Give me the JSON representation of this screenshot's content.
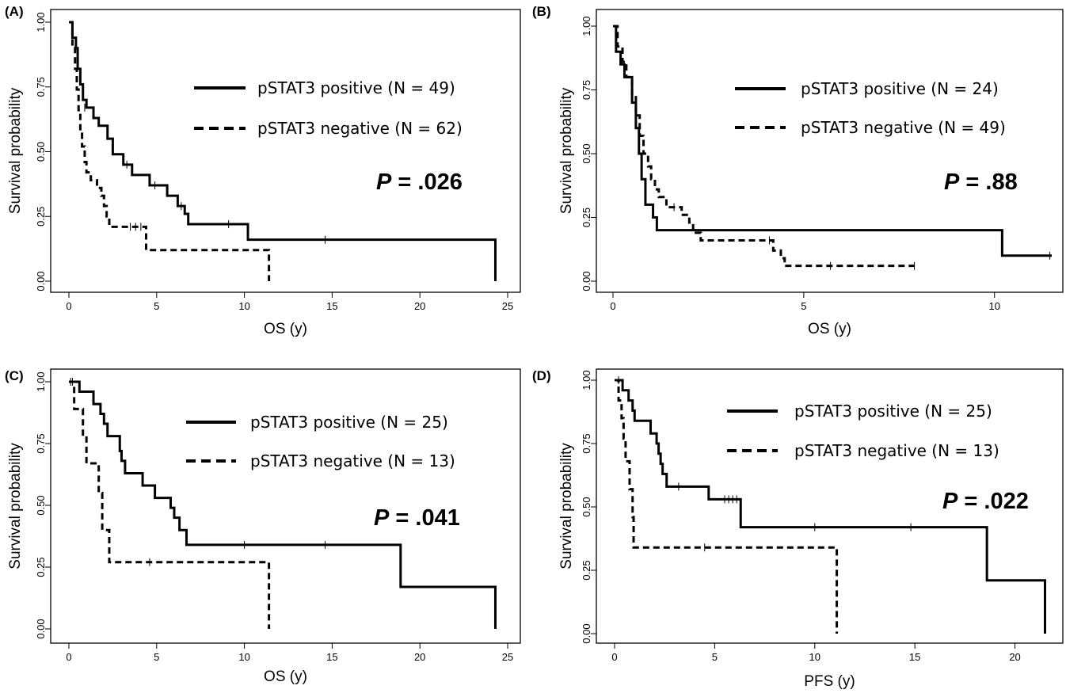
{
  "chart_data": [
    {
      "panel": "(A)",
      "type": "line",
      "xlabel": "OS (y)",
      "ylabel": "Survival probability",
      "xlim": [
        0,
        25
      ],
      "ylim": [
        0,
        1
      ],
      "x_ticks": [
        "0",
        "5",
        "10",
        "15",
        "20",
        "25"
      ],
      "y_ticks": [
        "0.00",
        "0.25",
        "0.50",
        "0.75",
        "1.00"
      ],
      "p_value": ".026",
      "series": [
        {
          "name": "pSTAT3 positive (N = 49)",
          "style": "solid",
          "steps": [
            [
              0,
              1.0
            ],
            [
              0.2,
              0.94
            ],
            [
              0.4,
              0.9
            ],
            [
              0.5,
              0.82
            ],
            [
              0.65,
              0.76
            ],
            [
              0.8,
              0.7
            ],
            [
              1.0,
              0.67
            ],
            [
              1.4,
              0.63
            ],
            [
              1.7,
              0.6
            ],
            [
              2.2,
              0.55
            ],
            [
              2.5,
              0.49
            ],
            [
              3.1,
              0.45
            ],
            [
              3.6,
              0.41
            ],
            [
              4.6,
              0.37
            ],
            [
              5.6,
              0.33
            ],
            [
              6.2,
              0.29
            ],
            [
              6.6,
              0.26
            ],
            [
              6.8,
              0.22
            ],
            [
              10.2,
              0.16
            ],
            [
              24.3,
              0.0
            ]
          ],
          "censor": [
            [
              0.9,
              0.67
            ],
            [
              3.3,
              0.45
            ],
            [
              4.9,
              0.37
            ],
            [
              6.4,
              0.29
            ],
            [
              9.1,
              0.22
            ],
            [
              14.6,
              0.16
            ]
          ]
        },
        {
          "name": "pSTAT3 negative (N = 62)",
          "style": "dashed",
          "steps": [
            [
              0,
              1.0
            ],
            [
              0.2,
              0.9
            ],
            [
              0.35,
              0.82
            ],
            [
              0.45,
              0.74
            ],
            [
              0.55,
              0.66
            ],
            [
              0.65,
              0.58
            ],
            [
              0.75,
              0.52
            ],
            [
              0.9,
              0.46
            ],
            [
              1.0,
              0.42
            ],
            [
              1.25,
              0.39
            ],
            [
              1.6,
              0.36
            ],
            [
              1.85,
              0.33
            ],
            [
              2.0,
              0.29
            ],
            [
              2.15,
              0.25
            ],
            [
              2.3,
              0.21
            ],
            [
              4.4,
              0.12
            ],
            [
              11.4,
              0.0
            ]
          ],
          "censor": [
            [
              3.5,
              0.21
            ],
            [
              3.8,
              0.21
            ],
            [
              4.1,
              0.21
            ]
          ]
        }
      ]
    },
    {
      "panel": "(B)",
      "type": "line",
      "xlabel": "OS (y)",
      "ylabel": "Survival probability",
      "xlim": [
        0,
        11.5
      ],
      "ylim": [
        0,
        1
      ],
      "x_ticks": [
        "0",
        "5",
        "10"
      ],
      "y_ticks": [
        "0.00",
        "0.25",
        "0.50",
        "0.75",
        "1.00"
      ],
      "p_value": ".88",
      "series": [
        {
          "name": "pSTAT3 positive (N = 24)",
          "style": "solid",
          "steps": [
            [
              0,
              1.0
            ],
            [
              0.08,
              0.9
            ],
            [
              0.2,
              0.85
            ],
            [
              0.3,
              0.8
            ],
            [
              0.5,
              0.7
            ],
            [
              0.6,
              0.6
            ],
            [
              0.68,
              0.5
            ],
            [
              0.75,
              0.4
            ],
            [
              0.85,
              0.3
            ],
            [
              1.05,
              0.25
            ],
            [
              1.15,
              0.2
            ],
            [
              10.2,
              0.1
            ],
            [
              11.5,
              0.1
            ]
          ],
          "censor": [
            [
              11.45,
              0.1
            ]
          ]
        },
        {
          "name": "pSTAT3 negative (N = 49)",
          "style": "dashed",
          "steps": [
            [
              0,
              1.0
            ],
            [
              0.12,
              0.92
            ],
            [
              0.25,
              0.86
            ],
            [
              0.35,
              0.8
            ],
            [
              0.5,
              0.73
            ],
            [
              0.6,
              0.65
            ],
            [
              0.7,
              0.57
            ],
            [
              0.8,
              0.5
            ],
            [
              0.92,
              0.45
            ],
            [
              1.0,
              0.4
            ],
            [
              1.1,
              0.36
            ],
            [
              1.2,
              0.33
            ],
            [
              1.4,
              0.29
            ],
            [
              1.8,
              0.26
            ],
            [
              2.0,
              0.23
            ],
            [
              2.1,
              0.19
            ],
            [
              2.3,
              0.16
            ],
            [
              4.2,
              0.12
            ],
            [
              4.4,
              0.09
            ],
            [
              4.5,
              0.06
            ],
            [
              7.9,
              0.06
            ]
          ],
          "censor": [
            [
              1.6,
              0.29
            ],
            [
              4.1,
              0.16
            ],
            [
              5.7,
              0.06
            ],
            [
              7.9,
              0.06
            ]
          ]
        }
      ]
    },
    {
      "panel": "(C)",
      "type": "line",
      "xlabel": "OS (y)",
      "ylabel": "Survival probability",
      "xlim": [
        0,
        25
      ],
      "ylim": [
        0,
        1
      ],
      "x_ticks": [
        "0",
        "5",
        "10",
        "15",
        "20",
        "25"
      ],
      "y_ticks": [
        "0.00",
        "0.25",
        "0.50",
        "0.75",
        "1.00"
      ],
      "p_value": ".041",
      "series": [
        {
          "name": "pSTAT3 positive (N = 25)",
          "style": "solid",
          "steps": [
            [
              0,
              1.0
            ],
            [
              0.6,
              0.96
            ],
            [
              1.4,
              0.91
            ],
            [
              1.8,
              0.87
            ],
            [
              2.0,
              0.83
            ],
            [
              2.2,
              0.78
            ],
            [
              2.9,
              0.72
            ],
            [
              3.0,
              0.68
            ],
            [
              3.2,
              0.63
            ],
            [
              4.2,
              0.58
            ],
            [
              4.9,
              0.53
            ],
            [
              5.8,
              0.49
            ],
            [
              6.0,
              0.45
            ],
            [
              6.3,
              0.4
            ],
            [
              6.7,
              0.34
            ],
            [
              18.9,
              0.17
            ],
            [
              24.3,
              0.0
            ]
          ],
          "censor": [
            [
              0.2,
              1.0
            ],
            [
              10.0,
              0.34
            ],
            [
              14.6,
              0.34
            ]
          ]
        },
        {
          "name": "pSTAT3 negative (N = 13)",
          "style": "dashed",
          "steps": [
            [
              0,
              1.0
            ],
            [
              0.3,
              0.89
            ],
            [
              0.8,
              0.78
            ],
            [
              1.0,
              0.67
            ],
            [
              1.7,
              0.55
            ],
            [
              1.9,
              0.4
            ],
            [
              2.3,
              0.27
            ],
            [
              11.4,
              0.0
            ]
          ],
          "censor": [
            [
              0.1,
              1.0
            ],
            [
              4.6,
              0.27
            ]
          ]
        }
      ]
    },
    {
      "panel": "(D)",
      "type": "line",
      "xlabel": "PFS (y)",
      "ylabel": "Survival probability",
      "xlim": [
        0,
        21.6
      ],
      "ylim": [
        0,
        1
      ],
      "x_ticks": [
        "0",
        "5",
        "10",
        "15",
        "20"
      ],
      "y_ticks": [
        "0.00",
        "0.25",
        "0.50",
        "0.75",
        "1.00"
      ],
      "p_value": ".022",
      "series": [
        {
          "name": "pSTAT3 positive (N = 25)",
          "style": "solid",
          "steps": [
            [
              0,
              1.0
            ],
            [
              0.4,
              0.96
            ],
            [
              0.7,
              0.92
            ],
            [
              0.9,
              0.88
            ],
            [
              1.0,
              0.84
            ],
            [
              1.8,
              0.79
            ],
            [
              2.1,
              0.75
            ],
            [
              2.2,
              0.71
            ],
            [
              2.3,
              0.67
            ],
            [
              2.4,
              0.63
            ],
            [
              2.6,
              0.58
            ],
            [
              4.7,
              0.53
            ],
            [
              6.3,
              0.42
            ],
            [
              18.6,
              0.21
            ],
            [
              21.5,
              0.0
            ]
          ],
          "censor": [
            [
              0.2,
              1.0
            ],
            [
              3.2,
              0.58
            ],
            [
              5.5,
              0.53
            ],
            [
              5.7,
              0.53
            ],
            [
              5.9,
              0.53
            ],
            [
              6.1,
              0.53
            ],
            [
              10.0,
              0.42
            ],
            [
              14.8,
              0.42
            ]
          ]
        },
        {
          "name": "pSTAT3 negative (N = 13)",
          "style": "dashed",
          "steps": [
            [
              0,
              1.0
            ],
            [
              0.2,
              0.92
            ],
            [
              0.35,
              0.85
            ],
            [
              0.45,
              0.77
            ],
            [
              0.55,
              0.68
            ],
            [
              0.75,
              0.57
            ],
            [
              0.9,
              0.46
            ],
            [
              0.95,
              0.34
            ],
            [
              11.1,
              0.0
            ]
          ],
          "censor": [
            [
              4.5,
              0.34
            ]
          ]
        }
      ]
    }
  ]
}
